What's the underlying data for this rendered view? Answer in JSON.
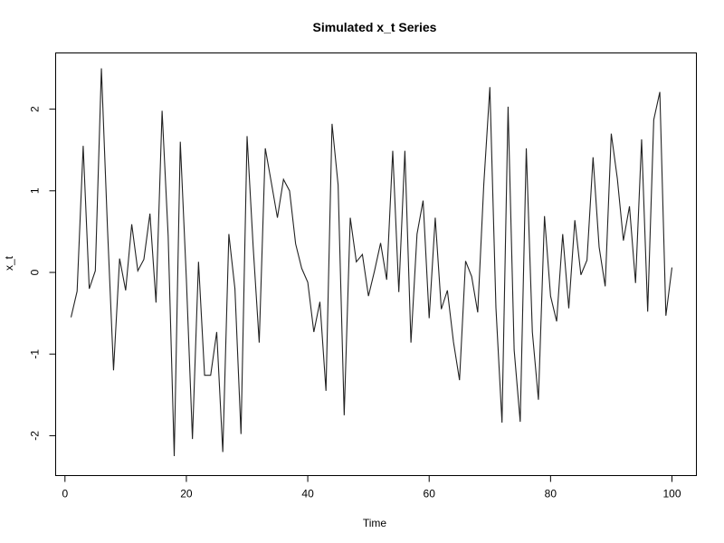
{
  "chart_data": {
    "type": "line",
    "title": "Simulated x_t Series",
    "xlabel": "Time",
    "ylabel": "x_t",
    "xlim": [
      1,
      100
    ],
    "ylim": [
      -2.3,
      2.5
    ],
    "xticks": [
      0,
      20,
      40,
      60,
      80,
      100
    ],
    "yticks": [
      -2,
      -1,
      0,
      1,
      2
    ],
    "x": [
      1,
      2,
      3,
      4,
      5,
      6,
      7,
      8,
      9,
      10,
      11,
      12,
      13,
      14,
      15,
      16,
      17,
      18,
      19,
      20,
      21,
      22,
      23,
      24,
      25,
      26,
      27,
      28,
      29,
      30,
      31,
      32,
      33,
      34,
      35,
      36,
      37,
      38,
      39,
      40,
      41,
      42,
      43,
      44,
      45,
      46,
      47,
      48,
      49,
      50,
      51,
      52,
      53,
      54,
      55,
      56,
      57,
      58,
      59,
      60,
      61,
      62,
      63,
      64,
      65,
      66,
      67,
      68,
      69,
      70,
      71,
      72,
      73,
      74,
      75,
      76,
      77,
      78,
      79,
      80,
      81,
      82,
      83,
      84,
      85,
      86,
      87,
      88,
      89,
      90,
      91,
      92,
      93,
      94,
      95,
      96,
      97,
      98,
      99,
      100
    ],
    "y": [
      -0.55,
      -0.23,
      1.55,
      -0.2,
      0.02,
      2.5,
      0.55,
      -1.2,
      0.17,
      -0.22,
      0.59,
      0.02,
      0.16,
      0.72,
      -0.37,
      1.98,
      0.45,
      -2.25,
      1.6,
      -0.08,
      -2.04,
      0.13,
      -1.26,
      -1.26,
      -0.73,
      -2.2,
      0.47,
      -0.2,
      -1.98,
      1.67,
      0.32,
      -0.86,
      1.52,
      1.1,
      0.67,
      1.14,
      1.0,
      0.35,
      0.05,
      -0.12,
      -0.73,
      -0.36,
      -1.45,
      1.82,
      1.07,
      -1.75,
      0.67,
      0.13,
      0.22,
      -0.29,
      0.02,
      0.36,
      -0.09,
      1.49,
      -0.24,
      1.49,
      -0.86,
      0.47,
      0.88,
      -0.56,
      0.67,
      -0.45,
      -0.22,
      -0.85,
      -1.32,
      0.14,
      -0.05,
      -0.49,
      1.08,
      2.27,
      -0.43,
      -1.84,
      2.03,
      -0.95,
      -1.83,
      1.52,
      -0.73,
      -1.56,
      0.69,
      -0.29,
      -0.6,
      0.47,
      -0.44,
      0.64,
      -0.03,
      0.15,
      1.41,
      0.31,
      -0.17,
      1.7,
      1.15,
      0.39,
      0.81,
      -0.13,
      1.63,
      -0.48,
      1.87,
      2.21,
      -0.53,
      0.06
    ]
  }
}
